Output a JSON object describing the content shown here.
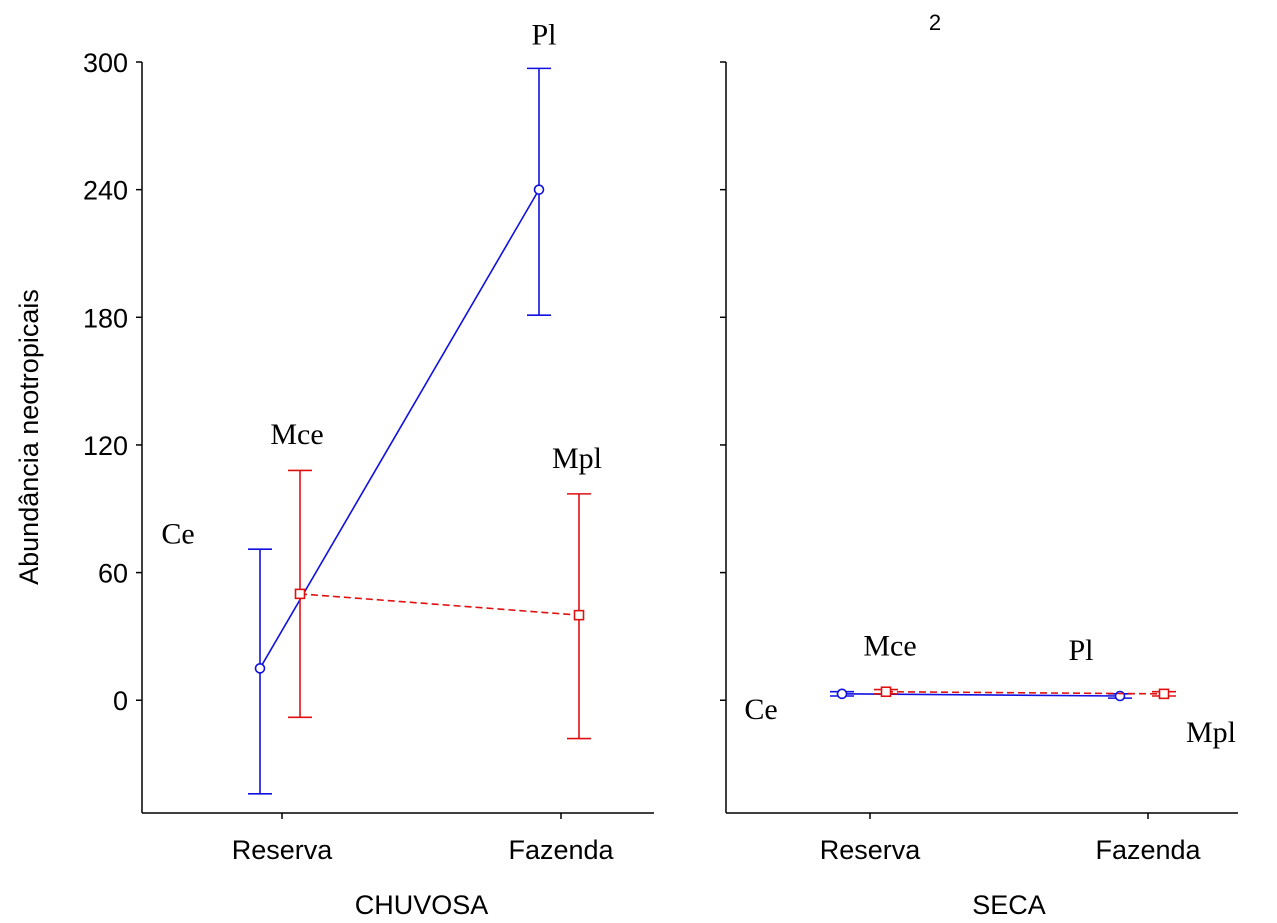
{
  "chart_data": {
    "type": "line",
    "title": "2",
    "ylabel": "Abundância neotropicais",
    "ylim": [
      -53,
      300
    ],
    "yticks": [
      0,
      60,
      120,
      180,
      240,
      300
    ],
    "categories": [
      "Reserva",
      "Fazenda"
    ],
    "colors": {
      "blue": "#1010e0",
      "red": "#e01010"
    },
    "panels": [
      {
        "name": "CHUVOSA",
        "series": [
          {
            "line": "solid",
            "color": "blue",
            "marker": "circle",
            "values": [
              15,
              240
            ],
            "err_low": [
              -44,
              181
            ],
            "err_high": [
              71,
              297
            ],
            "point_labels": [
              "Ce",
              "Pl"
            ]
          },
          {
            "line": "dashed",
            "color": "red",
            "marker": "square",
            "values": [
              50,
              40
            ],
            "err_low": [
              -8,
              -18
            ],
            "err_high": [
              108,
              97
            ],
            "point_labels": [
              "Mce",
              "Mpl"
            ]
          }
        ]
      },
      {
        "name": "SECA",
        "series": [
          {
            "line": "solid",
            "color": "blue",
            "marker": "circle",
            "values": [
              3,
              2
            ],
            "err_low": [
              2,
              1
            ],
            "err_high": [
              4,
              3
            ],
            "point_labels": [
              "Ce",
              "Pl"
            ]
          },
          {
            "line": "dashed",
            "color": "red",
            "marker": "square",
            "values": [
              4,
              3
            ],
            "err_low": [
              3,
              2
            ],
            "err_high": [
              5,
              4
            ],
            "point_labels": [
              "Mce",
              "Mpl"
            ]
          }
        ]
      }
    ]
  }
}
